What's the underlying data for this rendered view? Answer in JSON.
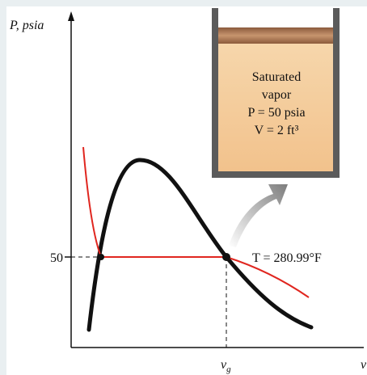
{
  "diagram": {
    "y_axis_label": "P, psia",
    "x_axis_label": "v",
    "pressure_tick": "50",
    "isotherm_label": "T = 280.99°F",
    "state_label": {
      "main": "v",
      "sub": "g"
    },
    "device_text": [
      "Saturated",
      "vapor",
      "P = 50 psia",
      "V = 2 ft³"
    ]
  }
}
